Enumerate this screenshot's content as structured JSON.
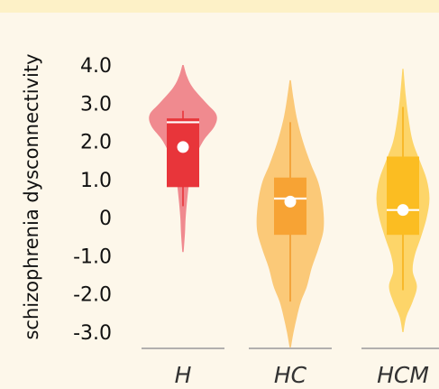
{
  "chart_data": {
    "type": "violin",
    "title": "",
    "xlabel": "",
    "ylabel": "schizophrenia dysconnectivity",
    "ylim": [
      -3.4,
      4.2
    ],
    "yticks": [
      4.0,
      3.0,
      2.0,
      1.0,
      0,
      -1.0,
      -2.0,
      -3.0
    ],
    "ytick_labels": [
      "4.0",
      "3.0",
      "2.0",
      "1.0",
      "0",
      "-1.0",
      "-2.0",
      "-3.0"
    ],
    "categories": [
      "H",
      "HC",
      "HCM"
    ],
    "colors": {
      "H": {
        "violin": "#f08a8f",
        "box": "#e8353a",
        "whisker": "#e8353a"
      },
      "HC": {
        "violin": "#fbc978",
        "box": "#f7a334",
        "whisker": "#f29a2c"
      },
      "HCM": {
        "violin": "#fdd569",
        "box": "#fbbd22",
        "whisker": "#f7b21c"
      }
    },
    "series": [
      {
        "name": "H",
        "min": -0.9,
        "max": 4.0,
        "q1": 0.8,
        "median": 2.5,
        "q3": 2.6,
        "mean": 1.85,
        "whisker_low": 0.3,
        "whisker_high": 2.8,
        "density": [
          [
            -0.9,
            0.02
          ],
          [
            -0.4,
            0.06
          ],
          [
            0.0,
            0.08
          ],
          [
            0.5,
            0.13
          ],
          [
            1.0,
            0.2
          ],
          [
            1.5,
            0.33
          ],
          [
            2.0,
            0.6
          ],
          [
            2.4,
            0.95
          ],
          [
            2.7,
            1.0
          ],
          [
            3.0,
            0.7
          ],
          [
            3.4,
            0.3
          ],
          [
            3.7,
            0.12
          ],
          [
            4.0,
            0.02
          ]
        ]
      },
      {
        "name": "HC",
        "min": -3.4,
        "max": 3.6,
        "q1": -0.45,
        "median": 0.5,
        "q3": 1.05,
        "mean": 0.42,
        "whisker_low": -2.2,
        "whisker_high": 2.5,
        "density": [
          [
            -3.4,
            0.02
          ],
          [
            -3.0,
            0.1
          ],
          [
            -2.6,
            0.2
          ],
          [
            -2.2,
            0.32
          ],
          [
            -1.8,
            0.5
          ],
          [
            -1.3,
            0.65
          ],
          [
            -0.8,
            0.85
          ],
          [
            -0.3,
            1.0
          ],
          [
            0.3,
            0.98
          ],
          [
            0.9,
            0.85
          ],
          [
            1.4,
            0.62
          ],
          [
            2.0,
            0.38
          ],
          [
            2.6,
            0.2
          ],
          [
            3.1,
            0.1
          ],
          [
            3.6,
            0.02
          ]
        ]
      },
      {
        "name": "HCM",
        "min": -3.0,
        "max": 3.9,
        "q1": -0.45,
        "median": 0.2,
        "q3": 1.6,
        "mean": 0.2,
        "whisker_low": -1.9,
        "whisker_high": 2.9,
        "density": [
          [
            -3.0,
            0.02
          ],
          [
            -2.6,
            0.12
          ],
          [
            -2.2,
            0.35
          ],
          [
            -1.8,
            0.5
          ],
          [
            -1.4,
            0.35
          ],
          [
            -1.0,
            0.42
          ],
          [
            -0.5,
            0.65
          ],
          [
            0.0,
            0.85
          ],
          [
            0.5,
            0.95
          ],
          [
            1.0,
            0.85
          ],
          [
            1.5,
            0.6
          ],
          [
            2.0,
            0.35
          ],
          [
            2.6,
            0.2
          ],
          [
            3.2,
            0.1
          ],
          [
            3.9,
            0.02
          ]
        ]
      }
    ]
  }
}
